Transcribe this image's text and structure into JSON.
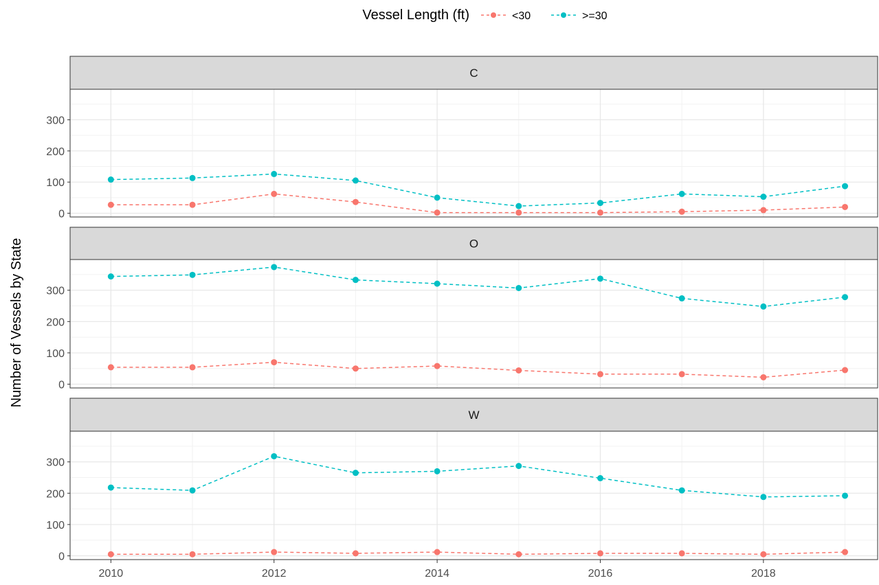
{
  "chart_data": {
    "type": "line",
    "ylabel": "Number of Vessels by State",
    "legend": {
      "title": "Vessel Length (ft)",
      "placement": "top",
      "entries": [
        {
          "label": "<30",
          "color": "#F8766D"
        },
        {
          "label": ">=30",
          "color": "#00BFC4"
        }
      ]
    },
    "x_ticks": [
      "2010",
      "2012",
      "2014",
      "2016",
      "2018"
    ],
    "y_ticks": [
      "0",
      "100",
      "200",
      "300"
    ],
    "xlim": [
      2009.5,
      2019.4
    ],
    "ylim": [
      -12,
      398
    ],
    "grid": true,
    "line_style": "dashed",
    "x": [
      2010,
      2011,
      2012,
      2013,
      2014,
      2015,
      2016,
      2017,
      2018,
      2019
    ],
    "panels": [
      {
        "strip": "C",
        "series": [
          {
            "name": "<30",
            "color": "#F8766D",
            "values": [
              27,
              27,
              62,
              36,
              2,
              2,
              2,
              5,
              10,
              20
            ]
          },
          {
            "name": ">=30",
            "color": "#00BFC4",
            "values": [
              108,
              113,
              126,
              105,
              50,
              23,
              33,
              62,
              53,
              87
            ]
          }
        ]
      },
      {
        "strip": "O",
        "series": [
          {
            "name": "<30",
            "color": "#F8766D",
            "values": [
              54,
              54,
              70,
              50,
              58,
              44,
              32,
              32,
              22,
              45
            ]
          },
          {
            "name": ">=30",
            "color": "#00BFC4",
            "values": [
              344,
              349,
              374,
              333,
              321,
              307,
              337,
              274,
              248,
              278
            ]
          }
        ]
      },
      {
        "strip": "W",
        "series": [
          {
            "name": "<30",
            "color": "#F8766D",
            "values": [
              5,
              5,
              12,
              8,
              12,
              5,
              8,
              8,
              5,
              12
            ]
          },
          {
            "name": ">=30",
            "color": "#00BFC4",
            "values": [
              218,
              209,
              318,
              265,
              270,
              287,
              248,
              209,
              188,
              192
            ]
          }
        ]
      }
    ]
  }
}
